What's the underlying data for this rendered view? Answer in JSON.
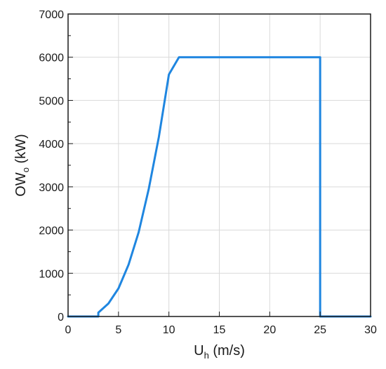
{
  "chart_data": {
    "type": "line",
    "xlabel": {
      "main": "U",
      "sub": "h",
      "unit": " (m/s)"
    },
    "ylabel": {
      "main": "OW",
      "sub": "o",
      "unit": " (kW)"
    },
    "xlim": [
      0,
      30
    ],
    "ylim": [
      0,
      7000
    ],
    "x_ticks": [
      0,
      5,
      10,
      15,
      20,
      25,
      30
    ],
    "y_ticks": [
      0,
      1000,
      2000,
      3000,
      4000,
      5000,
      6000,
      7000
    ],
    "grid": true,
    "legend": "none",
    "series": [
      {
        "color": "#1f86e0",
        "x": [
          0,
          3,
          3,
          4,
          5,
          6,
          7,
          8,
          9,
          10,
          11,
          25,
          25,
          30
        ],
        "y": [
          0,
          0,
          90,
          300,
          650,
          1200,
          1950,
          2950,
          4150,
          5600,
          6000,
          6000,
          0,
          0
        ]
      }
    ]
  }
}
